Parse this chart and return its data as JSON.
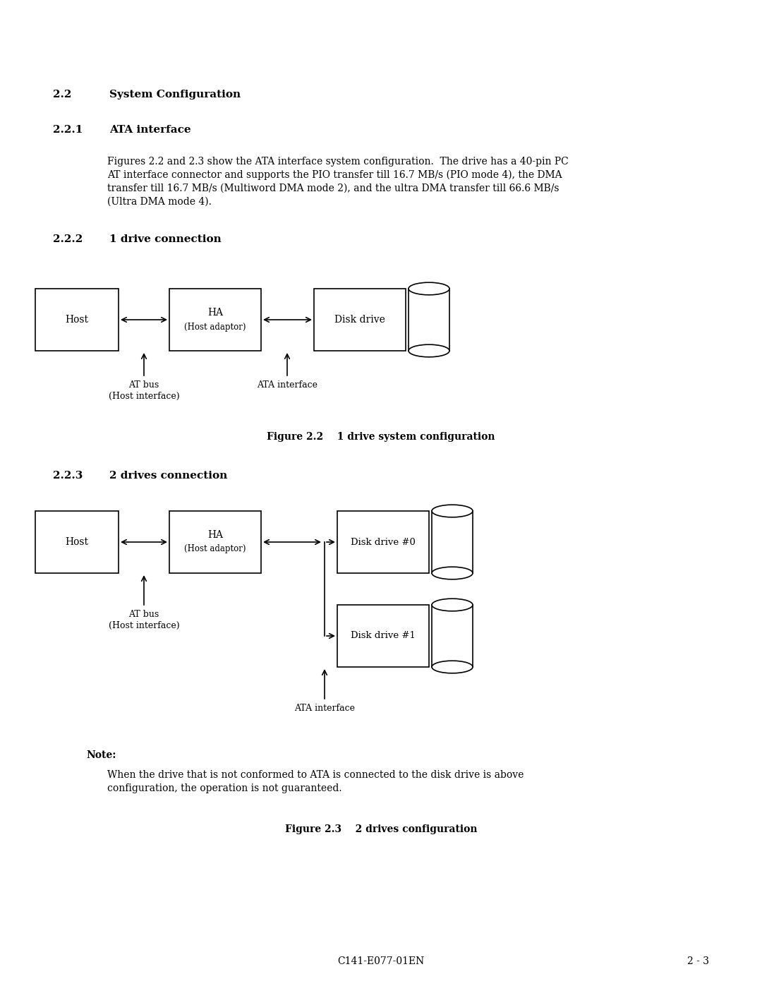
{
  "bg_color": "#ffffff",
  "text_color": "#000000",
  "section_22_title_num": "2.2",
  "section_22_title_text": "System Configuration",
  "section_221_title_num": "2.2.1",
  "section_221_title_text": "ATA interface",
  "section_221_body_line1": "Figures 2.2 and 2.3 show the ATA interface system configuration.  The drive has a 40-pin PC",
  "section_221_body_line2": "AT interface connector and supports the PIO transfer till 16.7 MB/s (PIO mode 4), the DMA",
  "section_221_body_line3": "transfer till 16.7 MB/s (Multiword DMA mode 2), and the ultra DMA transfer till 66.6 MB/s",
  "section_221_body_line4": "(Ultra DMA mode 4).",
  "section_222_title_num": "2.2.2",
  "section_222_title_text": "1 drive connection",
  "fig22_caption": "Figure 2.2    1 drive system configuration",
  "section_223_title_num": "2.2.3",
  "section_223_title_text": "2 drives connection",
  "fig23_caption": "Figure 2.3    2 drives configuration",
  "note_label": "Note:",
  "note_body_line1": "When the drive that is not conformed to ATA is connected to the disk drive is above",
  "note_body_line2": "configuration, the operation is not guaranteed.",
  "footer_left": "C141-E077-01EN",
  "footer_right": "2 - 3",
  "font_size_body": 10,
  "font_size_heading": 11,
  "font_size_small": 9,
  "font_size_diagram": 10,
  "font_size_diagram_sub": 8.5
}
